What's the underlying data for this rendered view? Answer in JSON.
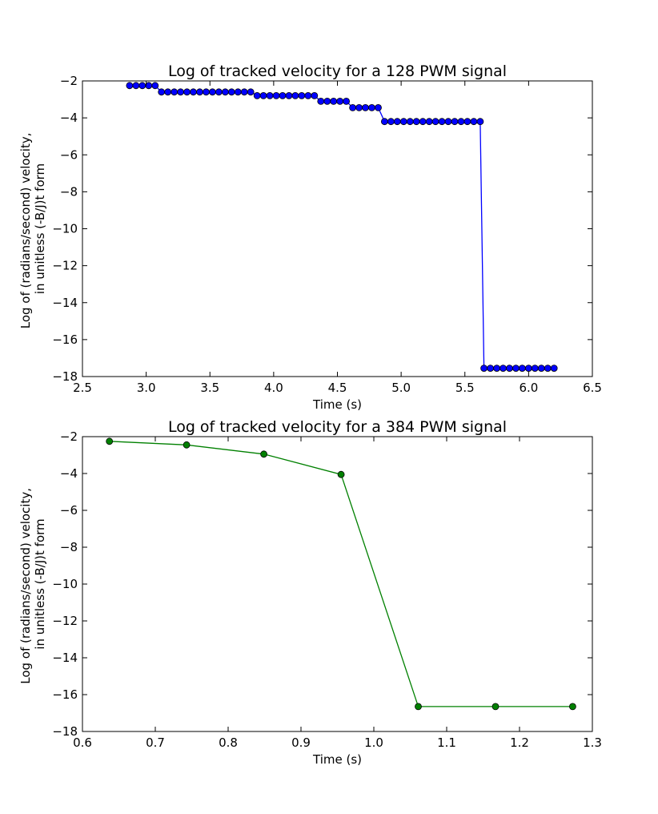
{
  "chart_data": [
    {
      "type": "line",
      "title": "Log of tracked velocity for a 128 PWM signal",
      "xlabel": "Time (s)",
      "ylabel_lines": [
        "Log of (radians/second) velocity,",
        "in unitless (-B/J)t form"
      ],
      "xlim": [
        2.5,
        6.5
      ],
      "ylim": [
        -18,
        -2
      ],
      "xticks": [
        "2.5",
        "3.0",
        "3.5",
        "4.0",
        "4.5",
        "5.0",
        "5.5",
        "6.0",
        "6.5"
      ],
      "yticks": [
        "−2",
        "−4",
        "−6",
        "−8",
        "−10",
        "−12",
        "−14",
        "−16",
        "−18"
      ],
      "grid": false,
      "series": [
        {
          "color": "#0000ff",
          "marker": "circle",
          "x": [
            2.87,
            2.92,
            2.97,
            3.02,
            3.07,
            3.12,
            3.17,
            3.22,
            3.27,
            3.32,
            3.37,
            3.42,
            3.47,
            3.52,
            3.57,
            3.62,
            3.67,
            3.72,
            3.77,
            3.82,
            3.87,
            3.92,
            3.97,
            4.02,
            4.07,
            4.12,
            4.17,
            4.22,
            4.27,
            4.32,
            4.37,
            4.42,
            4.47,
            4.52,
            4.57,
            4.62,
            4.67,
            4.72,
            4.77,
            4.82,
            4.87,
            4.92,
            4.97,
            5.02,
            5.07,
            5.12,
            5.17,
            5.22,
            5.27,
            5.32,
            5.37,
            5.42,
            5.47,
            5.52,
            5.57,
            5.62,
            5.65,
            5.7,
            5.75,
            5.8,
            5.85,
            5.9,
            5.95,
            6.0,
            6.05,
            6.1,
            6.15,
            6.2
          ],
          "y": [
            -2.25,
            -2.25,
            -2.25,
            -2.25,
            -2.25,
            -2.6,
            -2.6,
            -2.6,
            -2.6,
            -2.6,
            -2.6,
            -2.6,
            -2.6,
            -2.6,
            -2.6,
            -2.6,
            -2.6,
            -2.6,
            -2.6,
            -2.6,
            -2.8,
            -2.8,
            -2.8,
            -2.8,
            -2.8,
            -2.8,
            -2.8,
            -2.8,
            -2.8,
            -2.8,
            -3.1,
            -3.1,
            -3.1,
            -3.1,
            -3.1,
            -3.45,
            -3.45,
            -3.45,
            -3.45,
            -3.45,
            -4.2,
            -4.2,
            -4.2,
            -4.2,
            -4.2,
            -4.2,
            -4.2,
            -4.2,
            -4.2,
            -4.2,
            -4.2,
            -4.2,
            -4.2,
            -4.2,
            -4.2,
            -4.2,
            -17.55,
            -17.55,
            -17.55,
            -17.55,
            -17.55,
            -17.55,
            -17.55,
            -17.55,
            -17.55,
            -17.55,
            -17.55,
            -17.55
          ]
        }
      ]
    },
    {
      "type": "line",
      "title": "Log of tracked velocity for a 384 PWM signal",
      "xlabel": "Time (s)",
      "ylabel_lines": [
        "Log of (radians/second) velocity,",
        "in unitless (-B/J)t form"
      ],
      "xlim": [
        0.6,
        1.3
      ],
      "ylim": [
        -18,
        -2
      ],
      "xticks": [
        "0.6",
        "0.7",
        "0.8",
        "0.9",
        "1.0",
        "1.1",
        "1.2",
        "1.3"
      ],
      "yticks": [
        "−2",
        "−4",
        "−6",
        "−8",
        "−10",
        "−12",
        "−14",
        "−16",
        "−18"
      ],
      "grid": false,
      "series": [
        {
          "color": "#008000",
          "marker": "circle",
          "x": [
            0.637,
            0.743,
            0.849,
            0.955,
            1.061,
            1.167,
            1.273
          ],
          "y": [
            -2.25,
            -2.45,
            -2.95,
            -4.05,
            -16.65,
            -16.65,
            -16.65
          ]
        }
      ]
    }
  ]
}
